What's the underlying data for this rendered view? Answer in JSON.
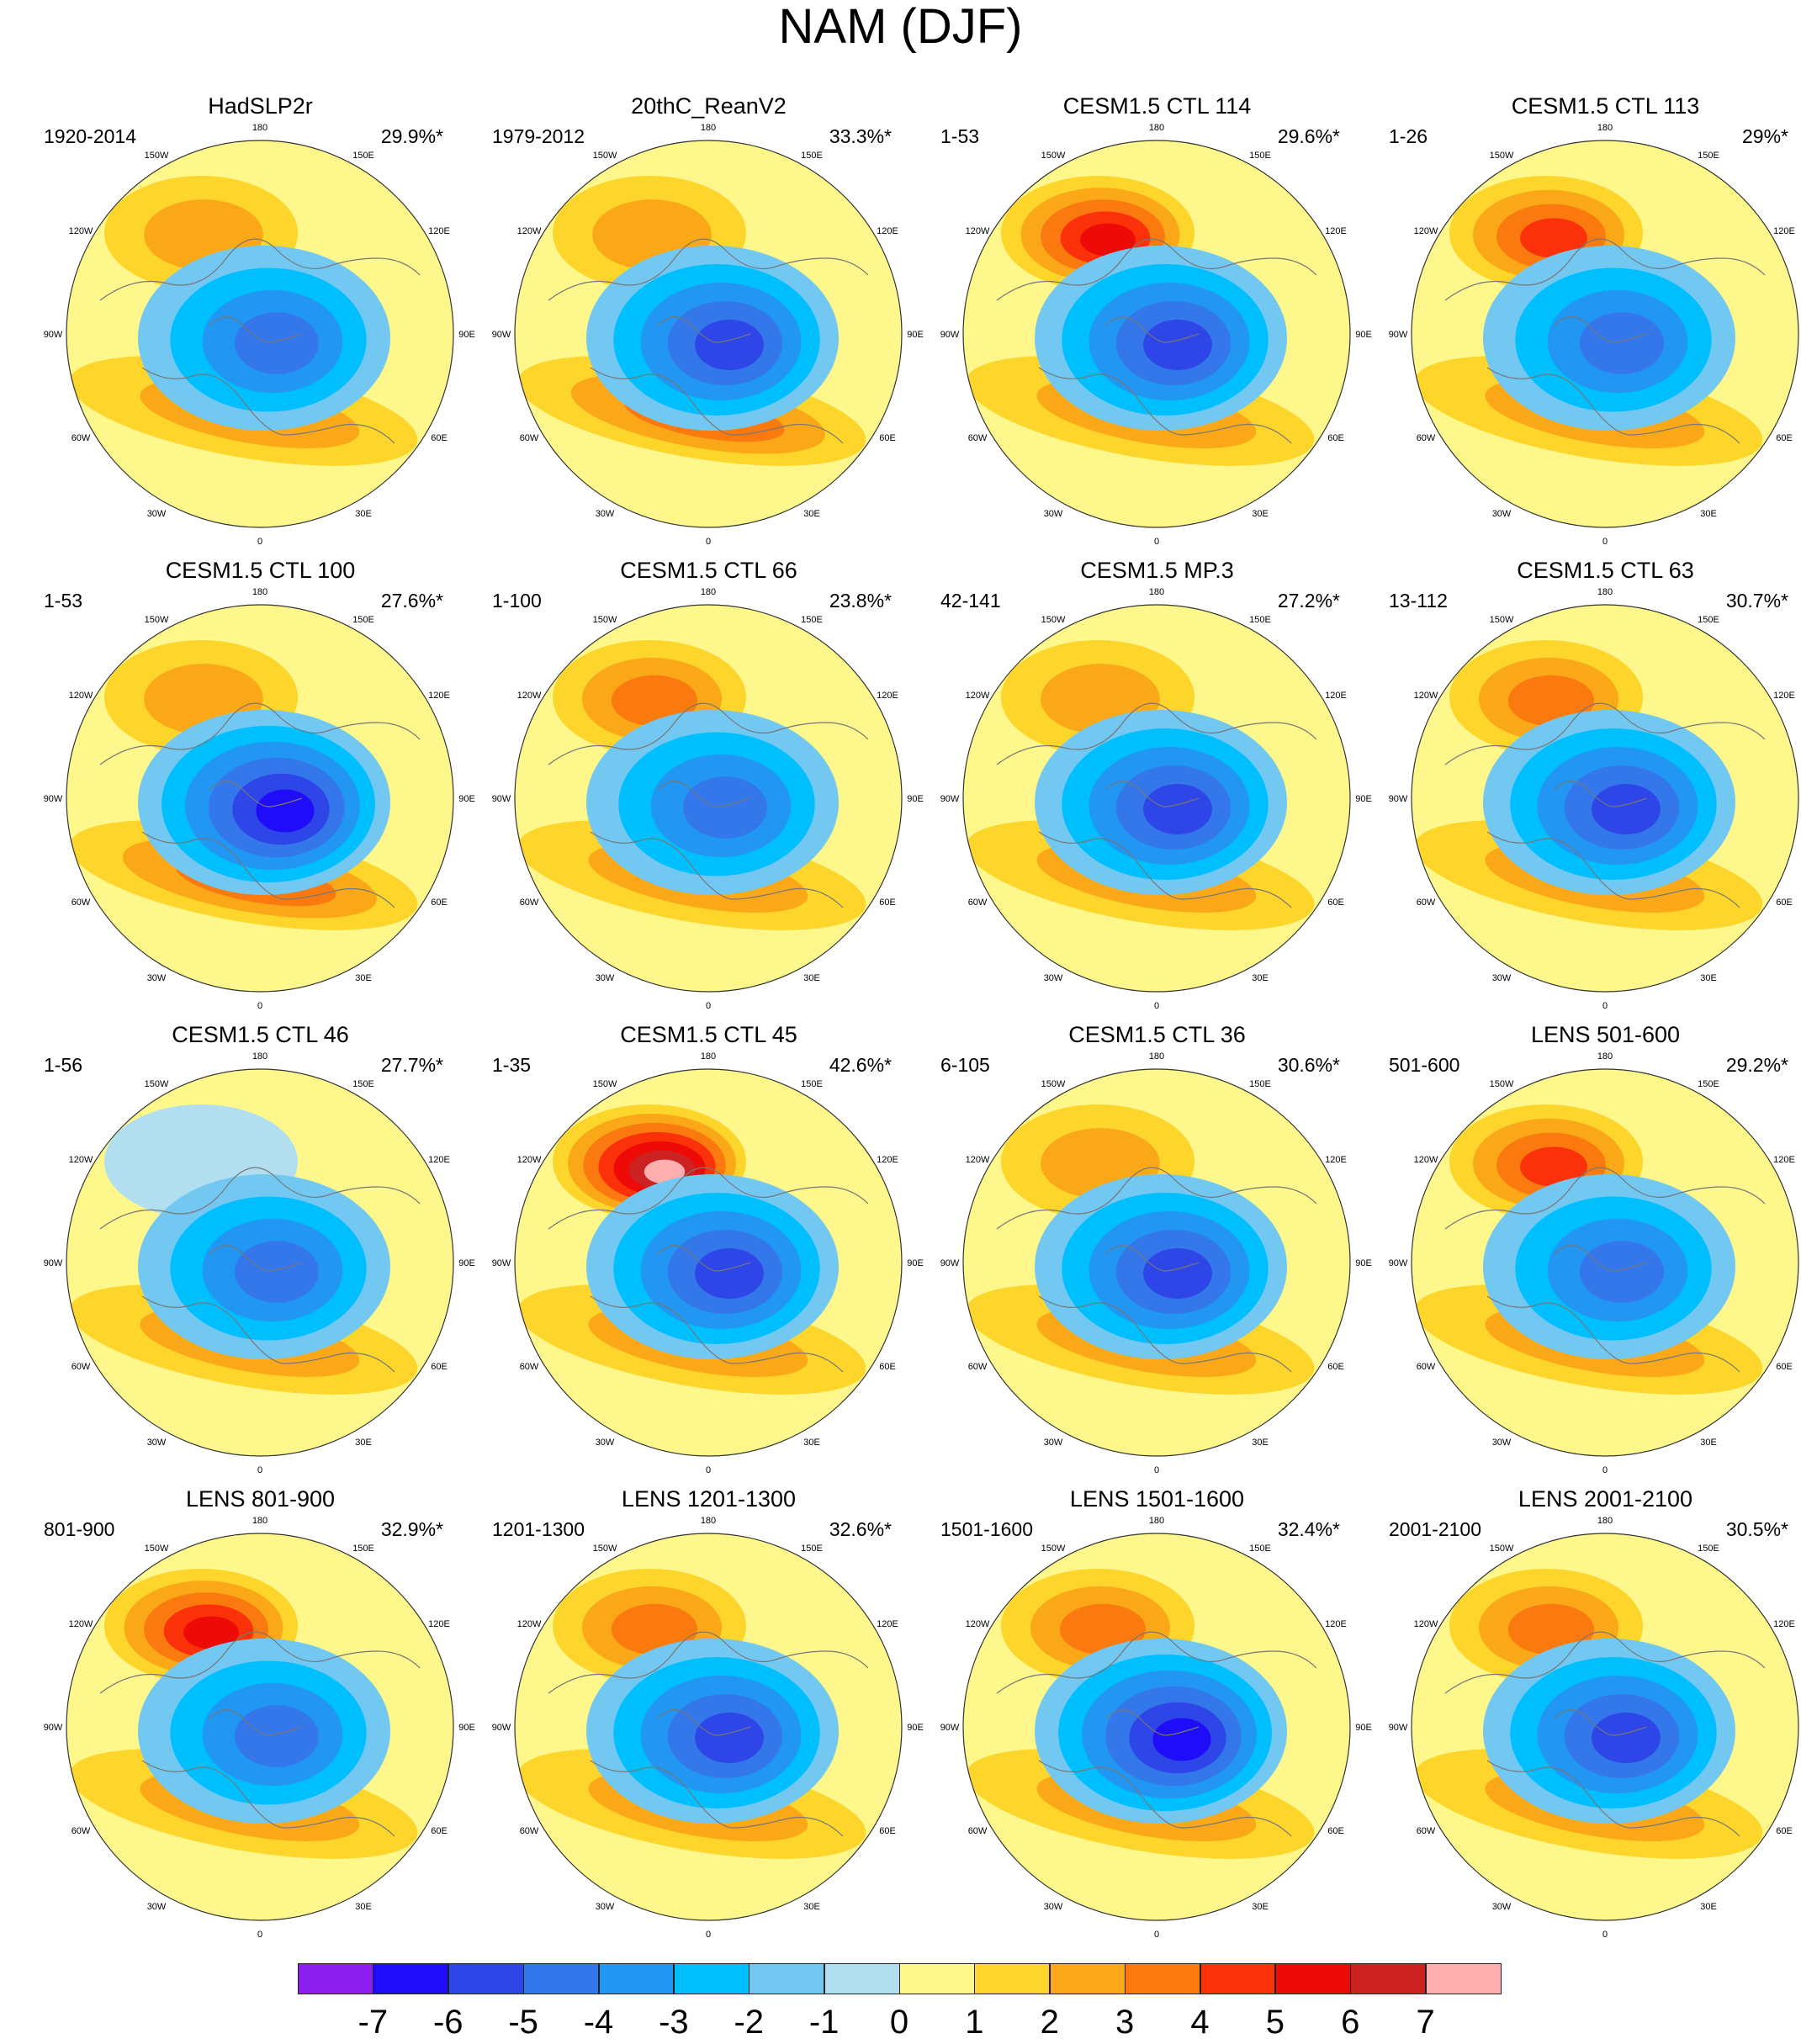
{
  "title": "NAM (DJF)",
  "chart_data": {
    "type": "heatmap",
    "projection": "north-polar-stereographic",
    "longitude_labels": [
      "180",
      "150E",
      "120E",
      "90E",
      "60E",
      "30E",
      "0",
      "30W",
      "60W",
      "90W",
      "120W",
      "150W"
    ],
    "colorbar": {
      "labels": [
        "-7",
        "-6",
        "-5",
        "-4",
        "-3",
        "-2",
        "-1",
        "0",
        "1",
        "2",
        "3",
        "4",
        "5",
        "6",
        "7"
      ],
      "colors": [
        "#8a1ff0",
        "#1f0dfa",
        "#2e45e8",
        "#3377eb",
        "#2196f3",
        "#00bfff",
        "#73c8f2",
        "#b2dff0",
        "#fdf78c",
        "#fdd52b",
        "#fba818",
        "#fb7a10",
        "#fb3209",
        "#ee0a06",
        "#cc2222",
        "#ffafaf"
      ]
    },
    "panels": [
      {
        "title": "HadSLP2r",
        "period": "1920-2014",
        "variance": "29.9%*",
        "pacific_max": 2.5,
        "atlantic_max": 2.5,
        "pole_min": -4.5
      },
      {
        "title": "20thC_ReanV2",
        "period": "1979-2012",
        "variance": "33.3%*",
        "pacific_max": 2.2,
        "atlantic_max": 3.4,
        "pole_min": -5.3
      },
      {
        "title": "CESM1.5 CTL 114",
        "period": "1-53",
        "variance": "29.6%*",
        "pacific_max": 5.2,
        "atlantic_max": 2.3,
        "pole_min": -5.0
      },
      {
        "title": "CESM1.5 CTL 113",
        "period": "1-26",
        "variance": "29%*",
        "pacific_max": 4.8,
        "atlantic_max": 2.4,
        "pole_min": -4.6
      },
      {
        "title": "CESM1.5 CTL 100",
        "period": "1-53",
        "variance": "27.6%*",
        "pacific_max": 2.0,
        "atlantic_max": 3.6,
        "pole_min": -6.0
      },
      {
        "title": "CESM1.5 CTL 66",
        "period": "1-100",
        "variance": "23.8%*",
        "pacific_max": 3.6,
        "atlantic_max": 2.4,
        "pole_min": -4.4
      },
      {
        "title": "CESM1.5 MP.3",
        "period": "42-141",
        "variance": "27.2%*",
        "pacific_max": 2.8,
        "atlantic_max": 2.2,
        "pole_min": -5.0
      },
      {
        "title": "CESM1.5 CTL 63",
        "period": "13-112",
        "variance": "30.7%*",
        "pacific_max": 3.3,
        "atlantic_max": 2.3,
        "pole_min": -5.2
      },
      {
        "title": "CESM1.5 CTL 46",
        "period": "1-56",
        "variance": "27.7%*",
        "pacific_max": -1.2,
        "atlantic_max": 2.6,
        "pole_min": -4.8
      },
      {
        "title": "CESM1.5 CTL 45",
        "period": "1-35",
        "variance": "42.6%*",
        "pacific_max": 7.2,
        "atlantic_max": 2.3,
        "pole_min": -5.2
      },
      {
        "title": "CESM1.5 CTL 36",
        "period": "6-105",
        "variance": "30.6%*",
        "pacific_max": 2.8,
        "atlantic_max": 2.6,
        "pole_min": -5.3
      },
      {
        "title": "LENS 501-600",
        "period": "501-600",
        "variance": "29.2%*",
        "pacific_max": 4.6,
        "atlantic_max": 2.5,
        "pole_min": -4.6
      },
      {
        "title": "LENS 801-900",
        "period": "801-900",
        "variance": "32.9%*",
        "pacific_max": 5.3,
        "atlantic_max": 2.6,
        "pole_min": -4.8
      },
      {
        "title": "LENS 1201-1300",
        "period": "1201-1300",
        "variance": "32.6%*",
        "pacific_max": 3.4,
        "atlantic_max": 2.5,
        "pole_min": -5.1
      },
      {
        "title": "LENS 1501-1600",
        "period": "1501-1600",
        "variance": "32.4%*",
        "pacific_max": 3.4,
        "atlantic_max": 2.4,
        "pole_min": -6.2
      },
      {
        "title": "LENS 2001-2100",
        "period": "2001-2100",
        "variance": "30.5%*",
        "pacific_max": 3.3,
        "atlantic_max": 2.3,
        "pole_min": -5.6
      }
    ]
  }
}
